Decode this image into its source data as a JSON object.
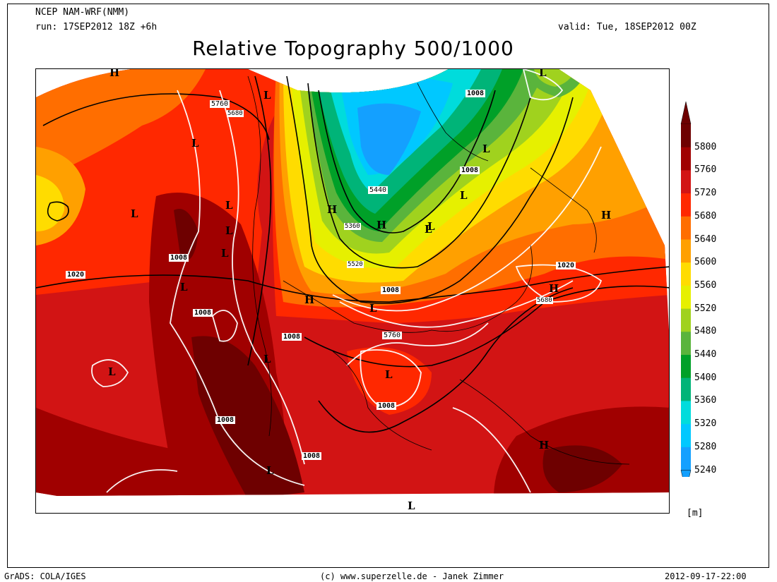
{
  "header": {
    "model": "NCEP NAM-WRF(NMM)",
    "run": "run: 17SEP2012 18Z +6h",
    "valid": "valid: Tue, 18SEP2012 00Z",
    "title": "Relative Topography 500/1000"
  },
  "colorbar": {
    "unit": "[m]",
    "levels": [
      {
        "label": "5800",
        "color": "#6e0000"
      },
      {
        "label": "5760",
        "color": "#a00000"
      },
      {
        "label": "5720",
        "color": "#d21414"
      },
      {
        "label": "5680",
        "color": "#ff2800"
      },
      {
        "label": "5640",
        "color": "#ff6e00"
      },
      {
        "label": "5600",
        "color": "#ffa000"
      },
      {
        "label": "5560",
        "color": "#ffdc00"
      },
      {
        "label": "5520",
        "color": "#e6f000"
      },
      {
        "label": "5480",
        "color": "#a0d21e"
      },
      {
        "label": "5440",
        "color": "#5ab43c"
      },
      {
        "label": "5400",
        "color": "#00a028"
      },
      {
        "label": "5360",
        "color": "#00b478"
      },
      {
        "label": "5320",
        "color": "#00dcdc"
      },
      {
        "label": "5280",
        "color": "#00c8ff"
      },
      {
        "label": "5240",
        "color": "#14a0ff"
      }
    ]
  },
  "map_labels": {
    "contours": [
      "5760",
      "5680",
      "1008",
      "1008",
      "5440",
      "5360",
      "5520",
      "1008",
      "1008",
      "1020",
      "1008",
      "1008",
      "5760",
      "1008",
      "1008",
      "1008",
      "1020",
      "5680"
    ],
    "pressure_centers": [
      "H",
      "L",
      "L",
      "L",
      "L",
      "L",
      "L",
      "L",
      "H",
      "H",
      "L",
      "L",
      "H",
      "L",
      "L",
      "L",
      "L",
      "L",
      "H",
      "L",
      "H",
      "L",
      "L",
      "H",
      "L"
    ]
  },
  "footer": {
    "left": "GrADS: COLA/IGES",
    "center": "(c) www.superzelle.de - Janek Zimmer",
    "right": "2012-09-17-22:00"
  }
}
